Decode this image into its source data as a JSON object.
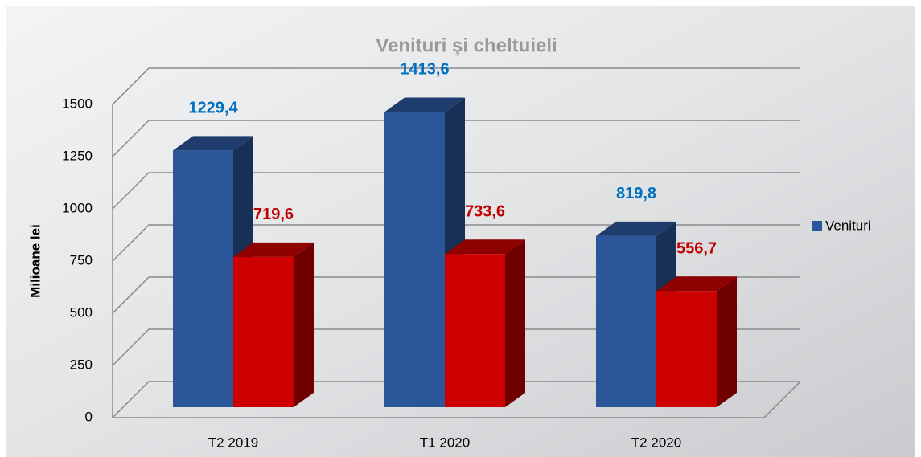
{
  "chart_data": {
    "type": "bar3d",
    "title": "Venituri şi cheltuieli",
    "y_label": "Milioane lei",
    "categories": [
      "T2 2019",
      "T1 2020",
      "T2 2020"
    ],
    "series": [
      {
        "name": "Venituri",
        "color": "#2b579a",
        "label_color": "#0070c0",
        "values": [
          1229.4,
          1413.6,
          819.8
        ],
        "value_labels": [
          "1229,4",
          "1413,6",
          "819,8"
        ]
      },
      {
        "color": "#cc0000",
        "label_color": "#c00000",
        "values": [
          719.6,
          733.6,
          556.7
        ],
        "value_labels": [
          "719,6",
          "733,6",
          "556,7"
        ]
      }
    ],
    "ylim": [
      0,
      1500
    ],
    "yticks": [
      0,
      250,
      500,
      750,
      1000,
      1250,
      1500
    ],
    "grid": true
  }
}
